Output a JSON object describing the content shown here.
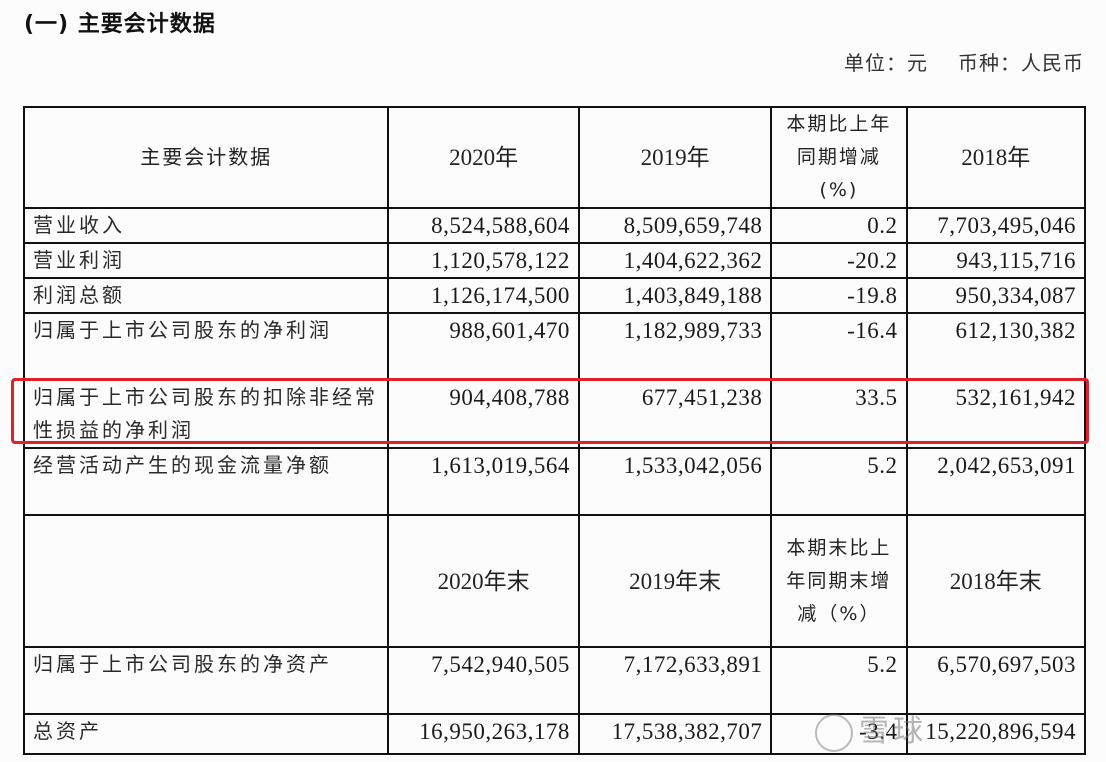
{
  "section_title": "(一) 主要会计数据",
  "unit_line": {
    "unit": "单位：元",
    "currency": "币种：人民币"
  },
  "table": {
    "header_period": {
      "label": "主要会计数据",
      "col_2020": "2020年",
      "col_2019": "2019年",
      "col_change": "本期比上年同期增减(%)",
      "col_2018": "2018年"
    },
    "period_rows": [
      {
        "label": "营业收入",
        "v2020": "8,524,588,604",
        "v2019": "8,509,659,748",
        "change": "0.2",
        "v2018": "7,703,495,046"
      },
      {
        "label": "营业利润",
        "v2020": "1,120,578,122",
        "v2019": "1,404,622,362",
        "change": "-20.2",
        "v2018": "943,115,716"
      },
      {
        "label": "利润总额",
        "v2020": "1,126,174,500",
        "v2019": "1,403,849,188",
        "change": "-19.8",
        "v2018": "950,334,087"
      },
      {
        "label": "归属于上市公司股东的净利润",
        "v2020": "988,601,470",
        "v2019": "1,182,989,733",
        "change": "-16.4",
        "v2018": "612,130,382"
      },
      {
        "label": "归属于上市公司股东的扣除非经常性损益的净利润",
        "v2020": "904,408,788",
        "v2019": "677,451,238",
        "change": "33.5",
        "v2018": "532,161,942",
        "highlighted": true
      },
      {
        "label": "经营活动产生的现金流量净额",
        "v2020": "1,613,019,564",
        "v2019": "1,533,042,056",
        "change": "5.2",
        "v2018": "2,042,653,091"
      }
    ],
    "header_end": {
      "label": "",
      "col_2020": "2020年末",
      "col_2019": "2019年末",
      "col_change": "本期末比上年同期末增减（%）",
      "col_2018": "2018年末"
    },
    "end_rows": [
      {
        "label": "归属于上市公司股东的净资产",
        "v2020": "7,542,940,505",
        "v2019": "7,172,633,891",
        "change": "5.2",
        "v2018": "6,570,697,503"
      },
      {
        "label": "总资产",
        "v2020": "16,950,263,178",
        "v2019": "17,538,382,707",
        "change": "-3.4",
        "v2018": "15,220,896,594"
      }
    ]
  },
  "highlight": {
    "color": "#e0202a",
    "row": "归属于上市公司股东的扣除非经常性损益的净利润"
  },
  "watermark": {
    "text": "雪球"
  }
}
